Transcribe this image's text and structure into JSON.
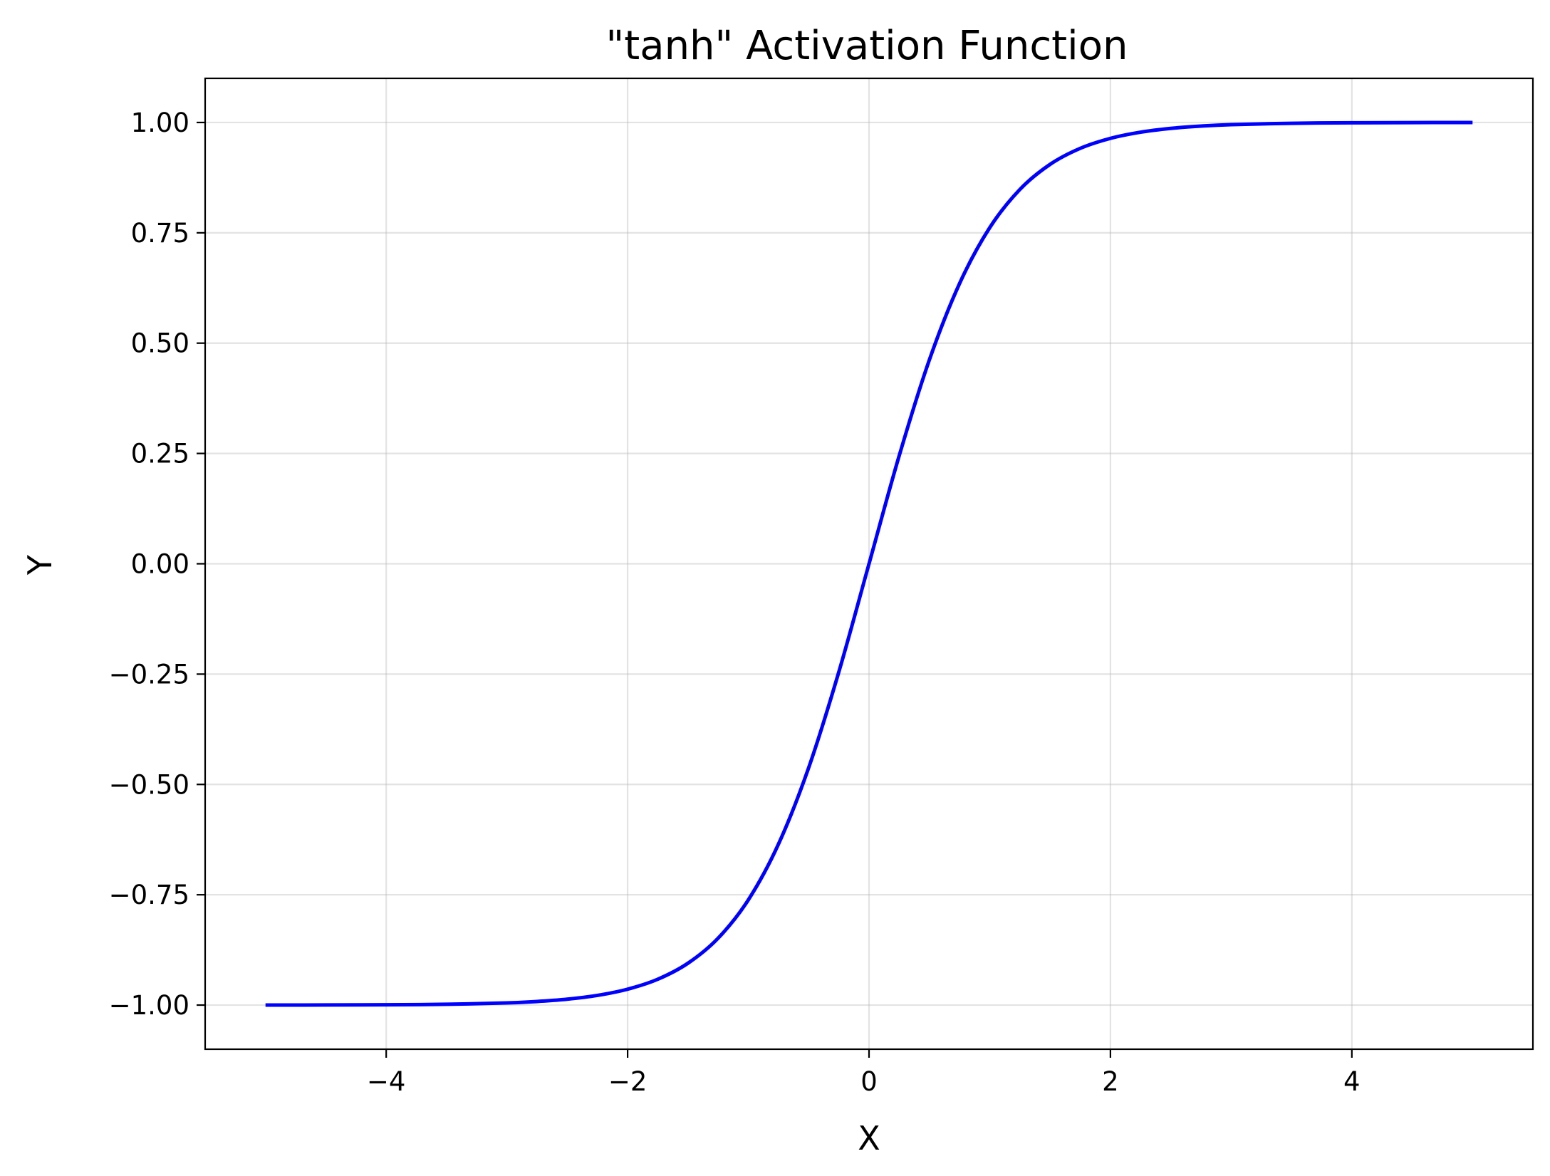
{
  "chart_data": {
    "type": "line",
    "title": "\"tanh\" Activation Function",
    "xlabel": "X",
    "ylabel": "Y",
    "xlim": [
      -5.5,
      5.5
    ],
    "ylim": [
      -1.1,
      1.1
    ],
    "x_ticks": [
      -4,
      -2,
      0,
      2,
      4
    ],
    "x_tick_labels": [
      "−4",
      "−2",
      "0",
      "2",
      "4"
    ],
    "y_ticks": [
      1.0,
      0.75,
      0.5,
      0.25,
      0.0,
      -0.25,
      -0.5,
      -0.75,
      -1.0
    ],
    "y_tick_labels": [
      "1.00",
      "0.75",
      "0.50",
      "0.25",
      "0.00",
      "−0.25",
      "−0.50",
      "−0.75",
      "−1.00"
    ],
    "grid": true,
    "series": [
      {
        "color": "#0000ff",
        "x": [
          -5.0,
          -4.5,
          -4.0,
          -3.5,
          -3.0,
          -2.75,
          -2.5,
          -2.25,
          -2.0,
          -1.75,
          -1.5,
          -1.25,
          -1.0,
          -0.75,
          -0.5,
          -0.25,
          0.0,
          0.25,
          0.5,
          0.75,
          1.0,
          1.25,
          1.5,
          1.75,
          2.0,
          2.25,
          2.5,
          2.75,
          3.0,
          3.5,
          4.0,
          4.5,
          5.0
        ],
        "y": [
          -0.9999,
          -0.9998,
          -0.9993,
          -0.9982,
          -0.9951,
          -0.9918,
          -0.9866,
          -0.978,
          -0.964,
          -0.9414,
          -0.9051,
          -0.8483,
          -0.7616,
          -0.6351,
          -0.4621,
          -0.2449,
          0.0,
          0.2449,
          0.4621,
          0.6351,
          0.7616,
          0.8483,
          0.9051,
          0.9414,
          0.964,
          0.978,
          0.9866,
          0.9918,
          0.9951,
          0.9982,
          0.9993,
          0.9998,
          0.9999
        ]
      }
    ]
  }
}
